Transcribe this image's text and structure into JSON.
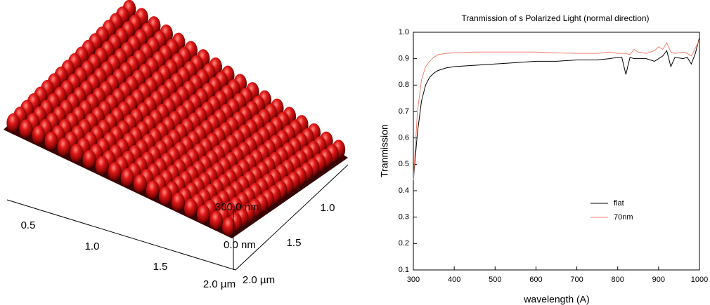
{
  "afm_image": {
    "x_axis_labels": [
      "0.5",
      "1.0",
      "1.5",
      "2.0 µm"
    ],
    "y_axis_labels": [
      "1.0",
      "1.5",
      "2.0 µm"
    ],
    "z_axis_labels": [
      "300.0 nm",
      "0.0 nm"
    ]
  },
  "chart_data": {
    "type": "line",
    "title": "Tranmission of s Polarized Light (normal direction)",
    "x_label": "wavelength (A)",
    "y_label": "Tranmission",
    "x": [
      300,
      310,
      320,
      330,
      340,
      350,
      360,
      380,
      400,
      450,
      500,
      550,
      600,
      650,
      700,
      750,
      780,
      800,
      810,
      820,
      830,
      840,
      850,
      870,
      890,
      900,
      910,
      920,
      930,
      940,
      960,
      970,
      980,
      990,
      1000
    ],
    "series": [
      {
        "name": "flat",
        "color": "#000000",
        "values": [
          0.44,
          0.62,
          0.74,
          0.8,
          0.83,
          0.845,
          0.855,
          0.865,
          0.87,
          0.875,
          0.88,
          0.885,
          0.89,
          0.89,
          0.895,
          0.895,
          0.9,
          0.905,
          0.905,
          0.84,
          0.905,
          0.9,
          0.9,
          0.9,
          0.89,
          0.9,
          0.91,
          0.93,
          0.87,
          0.905,
          0.9,
          0.905,
          0.88,
          0.92,
          0.98
        ]
      },
      {
        "name": "70nm",
        "color": "#f08070",
        "values": [
          0.44,
          0.7,
          0.82,
          0.87,
          0.89,
          0.905,
          0.915,
          0.92,
          0.922,
          0.925,
          0.925,
          0.925,
          0.925,
          0.922,
          0.92,
          0.92,
          0.925,
          0.92,
          0.92,
          0.92,
          0.915,
          0.935,
          0.925,
          0.92,
          0.93,
          0.945,
          0.935,
          0.96,
          0.925,
          0.92,
          0.925,
          0.92,
          0.91,
          0.94,
          0.97
        ]
      }
    ],
    "xlim": [
      300,
      1000
    ],
    "xticks": [
      300,
      400,
      500,
      600,
      700,
      800,
      900,
      1000
    ],
    "ylim": [
      0.1,
      1.0
    ],
    "yticks": [
      0.1,
      0.2,
      0.3,
      0.4,
      0.5,
      0.6,
      0.7,
      0.8,
      0.9,
      {
        "value": 1.0,
        "label": "1.0"
      }
    ],
    "legend": "lower right"
  }
}
